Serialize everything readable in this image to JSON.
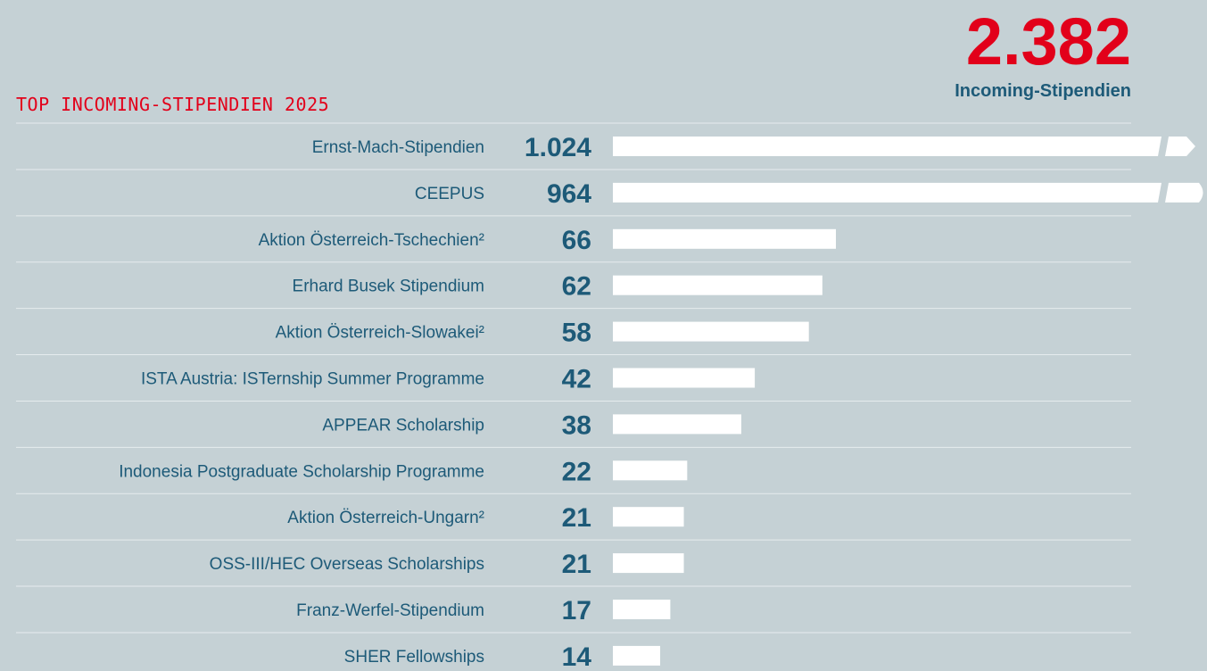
{
  "chart_data": {
    "type": "bar",
    "orientation": "horizontal",
    "title": "TOP INCOMING-STIPENDIEN 2025",
    "kpi": {
      "value": "2.382",
      "label": "Incoming-Stipendien"
    },
    "categories": [
      "Ernst-Mach-Stipendien",
      "CEEPUS",
      "Aktion Österreich-Tschechien²",
      "Erhard Busek Stipendium",
      "Aktion Österreich-Slowakei²",
      "ISTA Austria: ISTernship Summer Programme",
      "APPEAR Scholarship",
      "Indonesia Postgraduate Scholarship Programme",
      "Aktion Österreich-Ungarn²",
      "OSS-III/HEC Overseas Scholarships",
      "Franz-Werfel-Stipendium",
      "SHER Fellowships"
    ],
    "values": [
      1024,
      964,
      66,
      62,
      58,
      42,
      38,
      22,
      21,
      21,
      17,
      14
    ],
    "value_labels": [
      "1.024",
      "964",
      "66",
      "62",
      "58",
      "42",
      "38",
      "22",
      "21",
      "21",
      "17",
      "14"
    ],
    "color": "#ffffff"
  }
}
